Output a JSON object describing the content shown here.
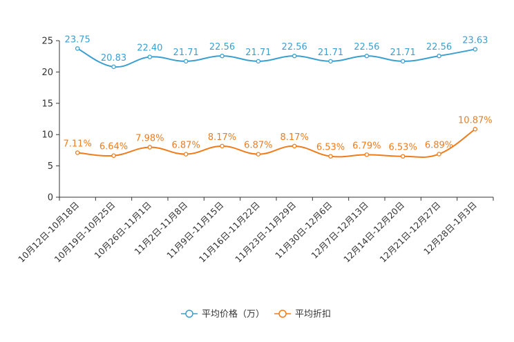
{
  "chart_data": {
    "type": "line",
    "categories": [
      "10月12日-10月18日",
      "10月19日-10月25日",
      "10月26日-11月1日",
      "11月2日-11月8日",
      "11月9日-11月15日",
      "11月16日-11月22日",
      "11月23日-11月29日",
      "11月30日-12月6日",
      "12月7日-12月13日",
      "12月14日-12月20日",
      "12月21日-12月27日",
      "12月28日-1月3日"
    ],
    "series": [
      {
        "name": "平均价格（万）",
        "color": "#3a9fd0",
        "values": [
          23.75,
          20.83,
          22.4,
          21.71,
          22.56,
          21.71,
          22.56,
          21.71,
          22.56,
          21.71,
          22.56,
          23.63
        ],
        "labels": [
          "23.75",
          "20.83",
          "22.40",
          "21.71",
          "22.56",
          "21.71",
          "22.56",
          "21.71",
          "22.56",
          "21.71",
          "22.56",
          "23.63"
        ]
      },
      {
        "name": "平均折扣",
        "color": "#f07b1a",
        "values": [
          7.11,
          6.64,
          7.98,
          6.87,
          8.17,
          6.87,
          8.17,
          6.53,
          6.79,
          6.53,
          6.89,
          10.87
        ],
        "labels": [
          "7.11%",
          "6.64%",
          "7.98%",
          "6.87%",
          "8.17%",
          "6.87%",
          "8.17%",
          "6.53%",
          "6.79%",
          "6.53%",
          "6.89%",
          "10.87%"
        ]
      }
    ],
    "yticks": [
      "0",
      "5",
      "10",
      "15",
      "20",
      "25"
    ],
    "ylim": [
      0,
      25
    ],
    "title": "",
    "xlabel": "",
    "ylabel": "",
    "legend_position": "bottom-center"
  }
}
